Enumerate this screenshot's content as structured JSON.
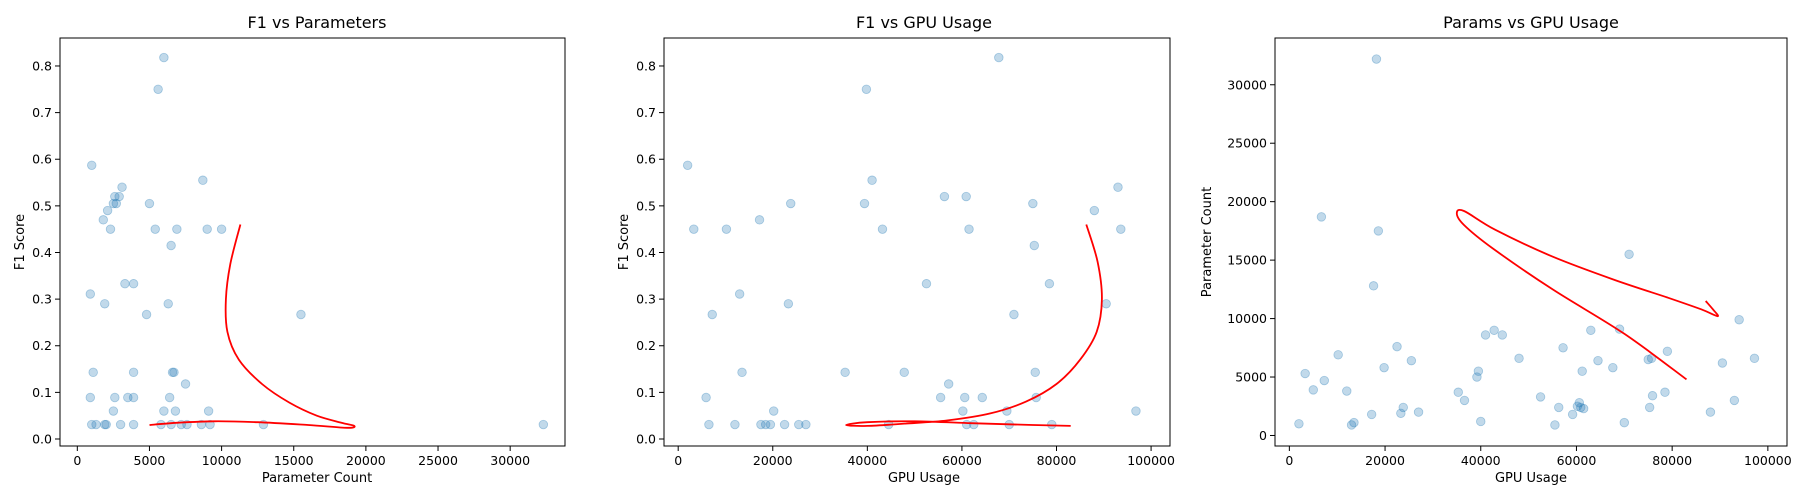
{
  "chart_data": [
    {
      "type": "scatter",
      "title": "F1 vs Parameters",
      "xlabel": "Parameter Count",
      "ylabel": "F1 Score",
      "xlim": [
        -1200,
        33800
      ],
      "ylim": [
        -0.015,
        0.86
      ],
      "xticks": [
        0,
        5000,
        10000,
        15000,
        20000,
        25000,
        30000
      ],
      "yticks": [
        0.0,
        0.1,
        0.2,
        0.3,
        0.4,
        0.5,
        0.6,
        0.7,
        0.8
      ],
      "grid": false,
      "points": [
        [
          1000,
          0.587
        ],
        [
          900,
          0.311
        ],
        [
          1100,
          0.143
        ],
        [
          900,
          0.089
        ],
        [
          1000,
          0.031
        ],
        [
          1300,
          0.031
        ],
        [
          1800,
          0.47
        ],
        [
          2100,
          0.49
        ],
        [
          2300,
          0.45
        ],
        [
          2600,
          0.52
        ],
        [
          2700,
          0.505
        ],
        [
          2500,
          0.505
        ],
        [
          2900,
          0.52
        ],
        [
          3100,
          0.54
        ],
        [
          3300,
          0.333
        ],
        [
          3900,
          0.333
        ],
        [
          1900,
          0.29
        ],
        [
          2600,
          0.089
        ],
        [
          2500,
          0.06
        ],
        [
          2000,
          0.031
        ],
        [
          1900,
          0.031
        ],
        [
          3000,
          0.031
        ],
        [
          3500,
          0.089
        ],
        [
          3900,
          0.089
        ],
        [
          3900,
          0.143
        ],
        [
          3900,
          0.031
        ],
        [
          5000,
          0.505
        ],
        [
          5400,
          0.45
        ],
        [
          5600,
          0.75
        ],
        [
          6000,
          0.818
        ],
        [
          4800,
          0.267
        ],
        [
          6300,
          0.29
        ],
        [
          6500,
          0.415
        ],
        [
          6900,
          0.45
        ],
        [
          6600,
          0.143
        ],
        [
          6700,
          0.143
        ],
        [
          7500,
          0.118
        ],
        [
          6400,
          0.089
        ],
        [
          6800,
          0.06
        ],
        [
          6000,
          0.06
        ],
        [
          6500,
          0.031
        ],
        [
          7200,
          0.031
        ],
        [
          7600,
          0.031
        ],
        [
          5800,
          0.031
        ],
        [
          8700,
          0.555
        ],
        [
          9000,
          0.45
        ],
        [
          10000,
          0.45
        ],
        [
          9100,
          0.06
        ],
        [
          8600,
          0.031
        ],
        [
          9200,
          0.031
        ],
        [
          12900,
          0.031
        ],
        [
          15500,
          0.267
        ],
        [
          32300,
          0.031
        ]
      ],
      "curve": [
        [
          11300,
          0.46
        ],
        [
          10600,
          0.375
        ],
        [
          10300,
          0.3
        ],
        [
          10400,
          0.23
        ],
        [
          11200,
          0.17
        ],
        [
          12800,
          0.118
        ],
        [
          14700,
          0.078
        ],
        [
          16600,
          0.05
        ],
        [
          18300,
          0.035
        ],
        [
          19200,
          0.028
        ],
        [
          18700,
          0.024
        ],
        [
          16000,
          0.03
        ],
        [
          12500,
          0.036
        ],
        [
          9500,
          0.038
        ],
        [
          7000,
          0.035
        ],
        [
          5000,
          0.03
        ]
      ]
    },
    {
      "type": "scatter",
      "title": "F1 vs GPU Usage",
      "xlabel": "GPU Usage",
      "ylabel": "F1 Score",
      "xlim": [
        -3000,
        104000
      ],
      "ylim": [
        -0.015,
        0.86
      ],
      "xticks": [
        0,
        20000,
        40000,
        60000,
        80000,
        100000
      ],
      "yticks": [
        0.0,
        0.1,
        0.2,
        0.3,
        0.4,
        0.5,
        0.6,
        0.7,
        0.8
      ],
      "grid": false,
      "points": [
        [
          2000,
          0.587
        ],
        [
          3300,
          0.45
        ],
        [
          5900,
          0.089
        ],
        [
          6500,
          0.031
        ],
        [
          7200,
          0.267
        ],
        [
          10200,
          0.45
        ],
        [
          12000,
          0.031
        ],
        [
          13000,
          0.311
        ],
        [
          13500,
          0.143
        ],
        [
          17200,
          0.47
        ],
        [
          17500,
          0.031
        ],
        [
          18500,
          0.031
        ],
        [
          19500,
          0.031
        ],
        [
          20200,
          0.06
        ],
        [
          22500,
          0.031
        ],
        [
          23300,
          0.29
        ],
        [
          23800,
          0.505
        ],
        [
          25500,
          0.031
        ],
        [
          27000,
          0.031
        ],
        [
          35300,
          0.143
        ],
        [
          39400,
          0.505
        ],
        [
          39800,
          0.75
        ],
        [
          41000,
          0.555
        ],
        [
          43200,
          0.45
        ],
        [
          44500,
          0.031
        ],
        [
          47800,
          0.143
        ],
        [
          52500,
          0.333
        ],
        [
          55500,
          0.089
        ],
        [
          56300,
          0.52
        ],
        [
          57200,
          0.118
        ],
        [
          60200,
          0.06
        ],
        [
          60600,
          0.089
        ],
        [
          61000,
          0.031
        ],
        [
          60900,
          0.52
        ],
        [
          61500,
          0.45
        ],
        [
          62500,
          0.031
        ],
        [
          64300,
          0.089
        ],
        [
          67800,
          0.818
        ],
        [
          69500,
          0.06
        ],
        [
          70000,
          0.031
        ],
        [
          71000,
          0.267
        ],
        [
          75000,
          0.505
        ],
        [
          75300,
          0.415
        ],
        [
          75500,
          0.143
        ],
        [
          75700,
          0.089
        ],
        [
          78500,
          0.333
        ],
        [
          79000,
          0.031
        ],
        [
          88000,
          0.49
        ],
        [
          90500,
          0.29
        ],
        [
          93000,
          0.54
        ],
        [
          93600,
          0.45
        ],
        [
          96800,
          0.06
        ]
      ],
      "curve": [
        [
          86300,
          0.46
        ],
        [
          88700,
          0.38
        ],
        [
          89600,
          0.3
        ],
        [
          88500,
          0.23
        ],
        [
          85000,
          0.17
        ],
        [
          80000,
          0.118
        ],
        [
          73500,
          0.08
        ],
        [
          66000,
          0.055
        ],
        [
          57000,
          0.04
        ],
        [
          48000,
          0.033
        ],
        [
          40000,
          0.028
        ],
        [
          35500,
          0.03
        ],
        [
          40000,
          0.036
        ],
        [
          50000,
          0.038
        ],
        [
          62000,
          0.034
        ],
        [
          75000,
          0.03
        ],
        [
          83000,
          0.028
        ]
      ]
    },
    {
      "type": "scatter",
      "title": "Params vs GPU Usage",
      "xlabel": "GPU Usage",
      "ylabel": "Parameter Count",
      "xlim": [
        -3000,
        104000
      ],
      "ylim": [
        -900,
        34000
      ],
      "xticks": [
        0,
        20000,
        40000,
        60000,
        80000,
        100000
      ],
      "yticks": [
        0,
        5000,
        10000,
        15000,
        20000,
        25000,
        30000
      ],
      "grid": false,
      "points": [
        [
          2000,
          1000
        ],
        [
          3300,
          5300
        ],
        [
          5000,
          3900
        ],
        [
          6700,
          18700
        ],
        [
          7300,
          4700
        ],
        [
          10200,
          6900
        ],
        [
          12000,
          3800
        ],
        [
          13000,
          900
        ],
        [
          13500,
          1100
        ],
        [
          17200,
          1800
        ],
        [
          17600,
          12800
        ],
        [
          18200,
          32200
        ],
        [
          18600,
          17500
        ],
        [
          19800,
          5800
        ],
        [
          22500,
          7600
        ],
        [
          23300,
          1900
        ],
        [
          23800,
          2400
        ],
        [
          25500,
          6400
        ],
        [
          27000,
          2000
        ],
        [
          35300,
          3700
        ],
        [
          36600,
          3000
        ],
        [
          39200,
          5000
        ],
        [
          39500,
          5500
        ],
        [
          40000,
          1200
        ],
        [
          41000,
          8600
        ],
        [
          42800,
          9000
        ],
        [
          44500,
          8600
        ],
        [
          48000,
          6600
        ],
        [
          52500,
          3300
        ],
        [
          55500,
          900
        ],
        [
          56300,
          2400
        ],
        [
          57200,
          7500
        ],
        [
          59200,
          1800
        ],
        [
          60200,
          2500
        ],
        [
          60600,
          2800
        ],
        [
          60900,
          2400
        ],
        [
          61200,
          5500
        ],
        [
          61500,
          2300
        ],
        [
          63000,
          9000
        ],
        [
          64500,
          6400
        ],
        [
          67600,
          5800
        ],
        [
          69000,
          9100
        ],
        [
          70000,
          1100
        ],
        [
          71000,
          15500
        ],
        [
          75000,
          6500
        ],
        [
          75300,
          2400
        ],
        [
          75700,
          6600
        ],
        [
          75900,
          3400
        ],
        [
          78500,
          3700
        ],
        [
          79000,
          7200
        ],
        [
          88000,
          2000
        ],
        [
          90500,
          6200
        ],
        [
          93000,
          3000
        ],
        [
          94000,
          9900
        ],
        [
          97200,
          6600
        ]
      ],
      "curve": [
        [
          83000,
          4800
        ],
        [
          70000,
          8700
        ],
        [
          55000,
          12500
        ],
        [
          42500,
          16000
        ],
        [
          36500,
          18000
        ],
        [
          35000,
          19000
        ],
        [
          36500,
          19200
        ],
        [
          43000,
          17600
        ],
        [
          55000,
          15300
        ],
        [
          68000,
          13300
        ],
        [
          79000,
          11800
        ],
        [
          86000,
          10800
        ],
        [
          89500,
          10200
        ],
        [
          88500,
          10800
        ],
        [
          87000,
          11500
        ]
      ]
    }
  ]
}
